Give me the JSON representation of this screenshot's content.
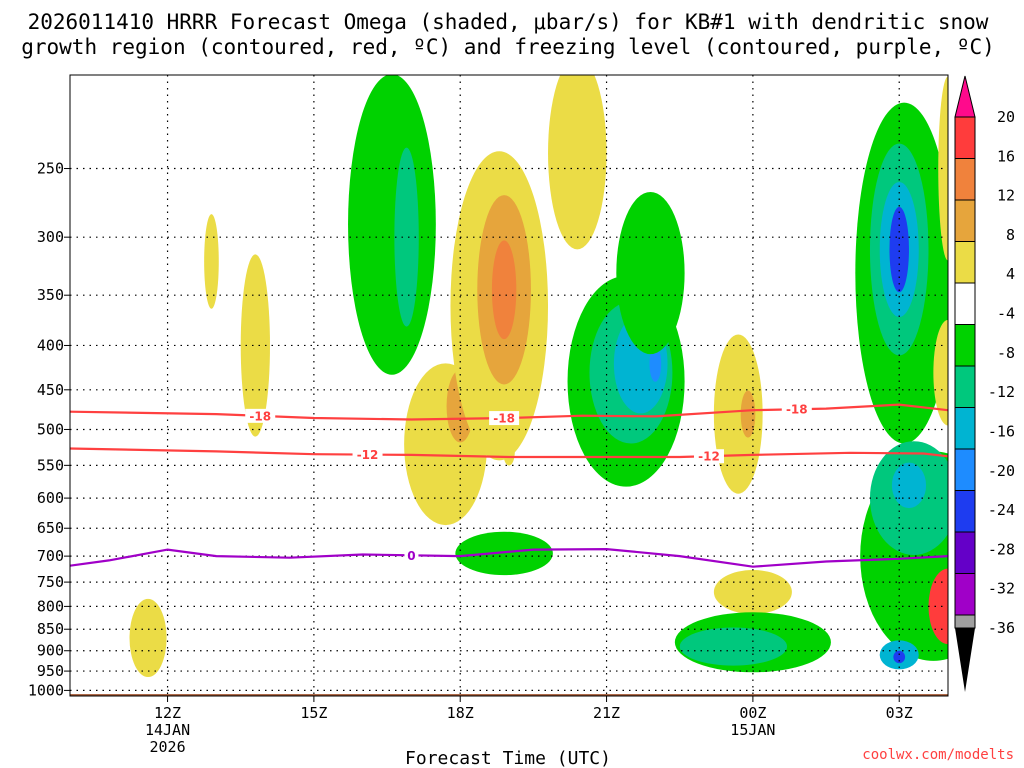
{
  "title_line1": "2026011410 HRRR Forecast Omega (shaded, μbar/s) for KB#1 with dendritic snow",
  "title_line2": "growth region (contoured, red, ºC) and freezing level (contoured, purple, ºC)",
  "credit": "coolwx.com/modelts",
  "chart_data": {
    "type": "contour-time-height",
    "xlabel": "Forecast Time (UTC)",
    "ylabel": "",
    "x_range_hours": [
      -2.0,
      16.0
    ],
    "y_range_hPa": [
      195,
      1015
    ],
    "y_ticks": [
      250,
      300,
      350,
      400,
      450,
      500,
      550,
      600,
      650,
      700,
      750,
      800,
      850,
      900,
      950,
      1000
    ],
    "x_ticks": [
      {
        "hour": 0,
        "lines": [
          "12Z",
          "14JAN",
          "2026"
        ]
      },
      {
        "hour": 3,
        "lines": [
          "15Z"
        ]
      },
      {
        "hour": 6,
        "lines": [
          "18Z"
        ]
      },
      {
        "hour": 9,
        "lines": [
          "21Z"
        ]
      },
      {
        "hour": 12,
        "lines": [
          "00Z",
          "15JAN"
        ]
      },
      {
        "hour": 15,
        "lines": [
          "03Z"
        ]
      }
    ],
    "colorbar": {
      "labels": [
        "20",
        "16",
        "12",
        "8",
        "4",
        "-4",
        "-8",
        "-12",
        "-16",
        "-20",
        "-24",
        "-28",
        "-32",
        "-36"
      ],
      "colors": [
        "#ff0a8c",
        "#ff3c3c",
        "#f0823c",
        "#e6a53c",
        "#ebdc46",
        "#ffffff",
        "#00d200",
        "#00c87d",
        "#00b4d2",
        "#1e8cff",
        "#1e3cf0",
        "#6400c8",
        "#a000c8",
        "#a0a0a0"
      ]
    },
    "omega_features": [
      {
        "x": -0.4,
        "p": 870,
        "rx": 0.38,
        "rp": 90,
        "level": 4
      },
      {
        "x": 0.9,
        "p": 320,
        "rx": 0.15,
        "rp": 40,
        "level": 4
      },
      {
        "x": 1.8,
        "p": 400,
        "rx": 0.3,
        "rp": 95,
        "level": 4
      },
      {
        "x": 4.6,
        "p": 290,
        "rx": 0.9,
        "rp": 110,
        "level": -8
      },
      {
        "x": 4.9,
        "p": 300,
        "rx": 0.25,
        "rp": 70,
        "level": -12
      },
      {
        "x": 5.7,
        "p": 520,
        "rx": 0.85,
        "rp": 110,
        "level": 4
      },
      {
        "x": 6.0,
        "p": 470,
        "rx": 0.28,
        "rp": 45,
        "level": 8
      },
      {
        "x": 6.8,
        "p": 360,
        "rx": 1.0,
        "rp": 140,
        "level": 4
      },
      {
        "x": 6.9,
        "p": 345,
        "rx": 0.55,
        "rp": 85,
        "level": 8
      },
      {
        "x": 6.9,
        "p": 345,
        "rx": 0.25,
        "rp": 45,
        "level": 12
      },
      {
        "x": 8.4,
        "p": 240,
        "rx": 0.6,
        "rp": 60,
        "level": 4
      },
      {
        "x": 7.0,
        "p": 530,
        "rx": 0.12,
        "rp": 20,
        "level": 4
      },
      {
        "x": 6.9,
        "p": 695,
        "rx": 1.0,
        "rp": 40,
        "level": -8
      },
      {
        "x": 9.4,
        "p": 440,
        "rx": 1.2,
        "rp": 120,
        "level": -8
      },
      {
        "x": 9.5,
        "p": 430,
        "rx": 0.85,
        "rp": 80,
        "level": -12
      },
      {
        "x": 9.7,
        "p": 420,
        "rx": 0.55,
        "rp": 55,
        "level": -16
      },
      {
        "x": 10.0,
        "p": 420,
        "rx": 0.12,
        "rp": 20,
        "level": -20
      },
      {
        "x": 9.9,
        "p": 330,
        "rx": 0.7,
        "rp": 70,
        "level": -8
      },
      {
        "x": 11.7,
        "p": 480,
        "rx": 0.5,
        "rp": 100,
        "level": 4
      },
      {
        "x": 11.9,
        "p": 480,
        "rx": 0.15,
        "rp": 30,
        "level": 8
      },
      {
        "x": 12.0,
        "p": 770,
        "rx": 0.8,
        "rp": 45,
        "level": 4
      },
      {
        "x": 12.0,
        "p": 880,
        "rx": 1.6,
        "rp": 70,
        "level": -8
      },
      {
        "x": 11.6,
        "p": 890,
        "rx": 1.1,
        "rp": 45,
        "level": -12
      },
      {
        "x": 15.1,
        "p": 330,
        "rx": 1.0,
        "rp": 140,
        "level": -8
      },
      {
        "x": 15.0,
        "p": 310,
        "rx": 0.6,
        "rp": 85,
        "level": -12
      },
      {
        "x": 15.0,
        "p": 310,
        "rx": 0.4,
        "rp": 55,
        "level": -16
      },
      {
        "x": 15.0,
        "p": 310,
        "rx": 0.2,
        "rp": 35,
        "level": -24
      },
      {
        "x": 15.7,
        "p": 700,
        "rx": 1.5,
        "rp": 190,
        "level": -8
      },
      {
        "x": 15.3,
        "p": 600,
        "rx": 0.9,
        "rp": 90,
        "level": -12
      },
      {
        "x": 15.2,
        "p": 580,
        "rx": 0.35,
        "rp": 35,
        "level": -16
      },
      {
        "x": 15.0,
        "p": 910,
        "rx": 0.4,
        "rp": 35,
        "level": -16
      },
      {
        "x": 15.0,
        "p": 915,
        "rx": 0.12,
        "rp": 15,
        "level": -24
      },
      {
        "x": 16.0,
        "p": 800,
        "rx": 0.4,
        "rp": 80,
        "level": 16
      },
      {
        "x": 16.0,
        "p": 430,
        "rx": 0.3,
        "rp": 60,
        "level": 4
      },
      {
        "x": 16.0,
        "p": 250,
        "rx": 0.2,
        "rp": 60,
        "level": 4
      }
    ],
    "contours": [
      {
        "label": "-18",
        "color": "#ff4040",
        "label_hours": [
          1.9,
          6.9,
          12.9
        ],
        "points": [
          [
            -2.0,
            477
          ],
          [
            1.0,
            480
          ],
          [
            3.0,
            485
          ],
          [
            5.0,
            487
          ],
          [
            7.0,
            485
          ],
          [
            8.5,
            482
          ],
          [
            10.0,
            483
          ],
          [
            12.0,
            475
          ],
          [
            13.5,
            473
          ],
          [
            15.0,
            468
          ],
          [
            16.0,
            475
          ]
        ]
      },
      {
        "label": "-12",
        "color": "#ff4040",
        "label_hours": [
          4.1,
          11.1
        ],
        "points": [
          [
            -2.0,
            526
          ],
          [
            1.0,
            530
          ],
          [
            3.0,
            534
          ],
          [
            5.0,
            535
          ],
          [
            7.0,
            538
          ],
          [
            9.0,
            538
          ],
          [
            10.5,
            538
          ],
          [
            12.0,
            535
          ],
          [
            14.0,
            532
          ],
          [
            15.5,
            533
          ],
          [
            16.0,
            537
          ]
        ]
      },
      {
        "label": "0",
        "color": "#a000c8",
        "label_hours": [
          5.0
        ],
        "points": [
          [
            -2.0,
            718
          ],
          [
            -1.2,
            708
          ],
          [
            0.0,
            688
          ],
          [
            1.0,
            700
          ],
          [
            2.5,
            703
          ],
          [
            4.0,
            697
          ],
          [
            6.0,
            700
          ],
          [
            7.5,
            688
          ],
          [
            9.0,
            687
          ],
          [
            10.5,
            700
          ],
          [
            12.0,
            720
          ],
          [
            13.5,
            710
          ],
          [
            15.0,
            705
          ],
          [
            16.0,
            700
          ]
        ]
      }
    ],
    "ground": {
      "surface_hPa": 1010
    }
  }
}
